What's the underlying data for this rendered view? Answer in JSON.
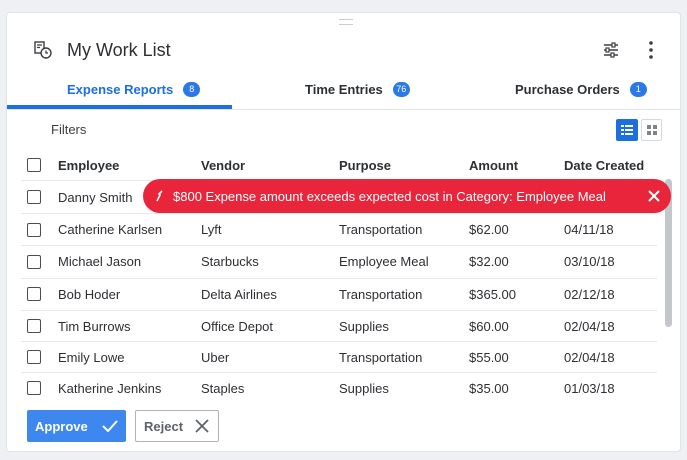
{
  "header": {
    "title": "My Work List"
  },
  "tabs": [
    {
      "label": "Expense Reports",
      "count": "8",
      "active": true
    },
    {
      "label": "Time Entries",
      "count": "76",
      "active": false
    },
    {
      "label": "Purchase Orders",
      "count": "1",
      "active": false
    }
  ],
  "filters_label": "Filters",
  "table": {
    "columns": [
      "Employee",
      "Vendor",
      "Purpose",
      "Amount",
      "Date Created"
    ],
    "rows": [
      {
        "employee": "Danny Smith",
        "vendor": "",
        "purpose": "",
        "amount": "",
        "date": ""
      },
      {
        "employee": "Catherine Karlsen",
        "vendor": "Lyft",
        "purpose": "Transportation",
        "amount": "$62.00",
        "date": "04/11/18"
      },
      {
        "employee": "Michael Jason",
        "vendor": "Starbucks",
        "purpose": "Employee Meal",
        "amount": "$32.00",
        "date": "03/10/18"
      },
      {
        "employee": "Bob Hoder",
        "vendor": "Delta Airlines",
        "purpose": "Transportation",
        "amount": "$365.00",
        "date": "02/12/18"
      },
      {
        "employee": "Tim Burrows",
        "vendor": "Office Depot",
        "purpose": "Supplies",
        "amount": "$60.00",
        "date": "02/04/18"
      },
      {
        "employee": "Emily Lowe",
        "vendor": "Uber",
        "purpose": "Transportation",
        "amount": "$55.00",
        "date": "02/04/18"
      },
      {
        "employee": "Katherine Jenkins",
        "vendor": "Staples",
        "purpose": "Supplies",
        "amount": "$35.00",
        "date": "01/03/18"
      }
    ]
  },
  "toast": {
    "message": "$800 Expense amount exceeds expected cost in Category: Employee Meal"
  },
  "actions": {
    "approve_label": "Approve",
    "reject_label": "Reject"
  },
  "colors": {
    "accent": "#1d6fe0",
    "error": "#e8253b",
    "primary_button": "#3d87ee"
  },
  "icons": {
    "header": "report-clock-icon",
    "settings": "sliders-icon",
    "more": "more-vertical-icon",
    "list_view": "list-view-icon",
    "grid_view": "grid-view-icon",
    "toast_warning": "warning-icon",
    "toast_close": "close-icon",
    "approve": "check-icon",
    "reject": "x-icon"
  }
}
